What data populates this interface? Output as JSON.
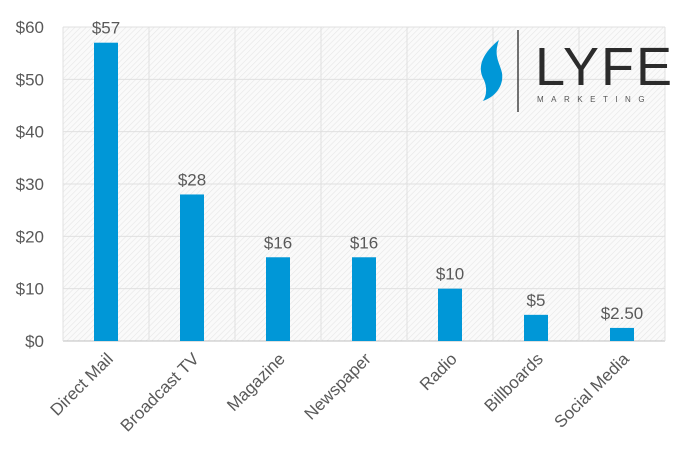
{
  "chart_data": {
    "type": "bar",
    "categories": [
      "Direct Mail",
      "Broadcast TV",
      "Magazine",
      "Newspaper",
      "Radio",
      "Billboards",
      "Social Media"
    ],
    "values": [
      57,
      28,
      16,
      16,
      10,
      5,
      2.5
    ],
    "data_labels": [
      "$57",
      "$28",
      "$16",
      "$16",
      "$10",
      "$5",
      "$2.50"
    ],
    "y_ticks": [
      0,
      10,
      20,
      30,
      40,
      50,
      60
    ],
    "y_tick_labels": [
      "$0",
      "$10",
      "$20",
      "$30",
      "$40",
      "$50",
      "$60"
    ],
    "ylim": [
      0,
      60
    ],
    "title": "",
    "xlabel": "",
    "ylabel": "",
    "grid": true,
    "legend": "none",
    "bar_color": "#0097D7",
    "plot_background": "hatched light gray"
  },
  "logo": {
    "word_prefix": "LY",
    "word_suffix": "FE",
    "tagline": "MARKETING",
    "icon": "flame-icon",
    "accent_color": "#0097D7"
  }
}
